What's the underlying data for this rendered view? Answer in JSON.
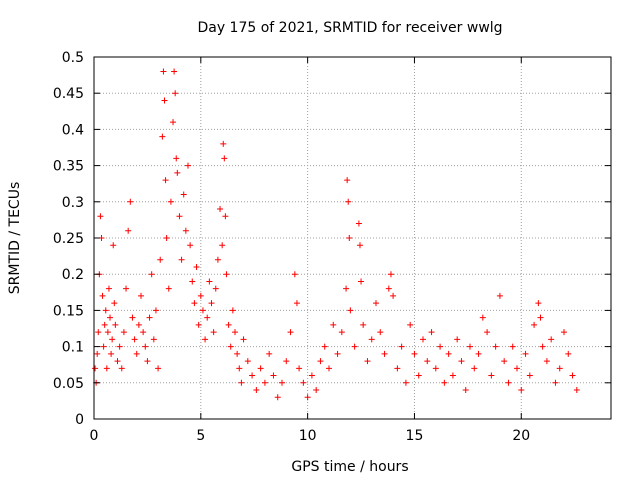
{
  "chart_data": {
    "type": "scatter",
    "title": "Day 175 of 2021, SRMTID for receiver wwlg",
    "xlabel": "GPS time / hours",
    "ylabel": "SRMTID / TECUs",
    "xlim": [
      0,
      24.2
    ],
    "ylim": [
      0,
      0.5
    ],
    "x_ticks": [
      0,
      5,
      10,
      15,
      20
    ],
    "x_tick_labels": [
      "0",
      "5",
      "10",
      "15",
      "20"
    ],
    "y_ticks": [
      0,
      0.05,
      0.1,
      0.15,
      0.2,
      0.25,
      0.3,
      0.35,
      0.4,
      0.45,
      0.5
    ],
    "y_tick_labels": [
      "0",
      "0.05",
      "0.1",
      "0.15",
      "0.2",
      "0.25",
      "0.3",
      "0.35",
      "0.4",
      "0.45",
      "0.5"
    ],
    "grid": true,
    "marker": "+",
    "colors": {
      "series": "#ff0000",
      "grid": "#a0a0a0",
      "axis": "#000000"
    },
    "series": [
      {
        "name": "SRMTID",
        "points": [
          [
            0.05,
            0.07
          ],
          [
            0.1,
            0.05
          ],
          [
            0.15,
            0.09
          ],
          [
            0.2,
            0.12
          ],
          [
            0.25,
            0.2
          ],
          [
            0.3,
            0.28
          ],
          [
            0.35,
            0.25
          ],
          [
            0.4,
            0.17
          ],
          [
            0.45,
            0.1
          ],
          [
            0.5,
            0.13
          ],
          [
            0.55,
            0.15
          ],
          [
            0.6,
            0.07
          ],
          [
            0.65,
            0.12
          ],
          [
            0.7,
            0.18
          ],
          [
            0.75,
            0.14
          ],
          [
            0.8,
            0.09
          ],
          [
            0.85,
            0.11
          ],
          [
            0.9,
            0.24
          ],
          [
            0.95,
            0.16
          ],
          [
            1.0,
            0.13
          ],
          [
            1.1,
            0.08
          ],
          [
            1.2,
            0.1
          ],
          [
            1.3,
            0.07
          ],
          [
            1.4,
            0.12
          ],
          [
            1.5,
            0.18
          ],
          [
            1.6,
            0.26
          ],
          [
            1.7,
            0.3
          ],
          [
            1.8,
            0.14
          ],
          [
            1.9,
            0.11
          ],
          [
            2.0,
            0.09
          ],
          [
            2.1,
            0.13
          ],
          [
            2.2,
            0.17
          ],
          [
            2.3,
            0.12
          ],
          [
            2.4,
            0.1
          ],
          [
            2.5,
            0.08
          ],
          [
            2.6,
            0.14
          ],
          [
            2.7,
            0.2
          ],
          [
            2.8,
            0.11
          ],
          [
            2.9,
            0.15
          ],
          [
            3.0,
            0.07
          ],
          [
            3.1,
            0.22
          ],
          [
            3.2,
            0.39
          ],
          [
            3.25,
            0.48
          ],
          [
            3.3,
            0.44
          ],
          [
            3.35,
            0.33
          ],
          [
            3.4,
            0.25
          ],
          [
            3.5,
            0.18
          ],
          [
            3.6,
            0.3
          ],
          [
            3.7,
            0.41
          ],
          [
            3.75,
            0.48
          ],
          [
            3.8,
            0.45
          ],
          [
            3.85,
            0.36
          ],
          [
            3.9,
            0.34
          ],
          [
            4.0,
            0.28
          ],
          [
            4.1,
            0.22
          ],
          [
            4.2,
            0.31
          ],
          [
            4.3,
            0.26
          ],
          [
            4.4,
            0.35
          ],
          [
            4.5,
            0.24
          ],
          [
            4.6,
            0.19
          ],
          [
            4.7,
            0.16
          ],
          [
            4.8,
            0.21
          ],
          [
            4.9,
            0.13
          ],
          [
            5.0,
            0.17
          ],
          [
            5.1,
            0.15
          ],
          [
            5.2,
            0.11
          ],
          [
            5.3,
            0.14
          ],
          [
            5.4,
            0.19
          ],
          [
            5.5,
            0.16
          ],
          [
            5.6,
            0.12
          ],
          [
            5.7,
            0.18
          ],
          [
            5.8,
            0.22
          ],
          [
            5.9,
            0.29
          ],
          [
            6.0,
            0.24
          ],
          [
            6.05,
            0.38
          ],
          [
            6.1,
            0.36
          ],
          [
            6.15,
            0.28
          ],
          [
            6.2,
            0.2
          ],
          [
            6.3,
            0.13
          ],
          [
            6.4,
            0.1
          ],
          [
            6.5,
            0.15
          ],
          [
            6.6,
            0.12
          ],
          [
            6.7,
            0.09
          ],
          [
            6.8,
            0.07
          ],
          [
            6.9,
            0.05
          ],
          [
            7.0,
            0.11
          ],
          [
            7.2,
            0.08
          ],
          [
            7.4,
            0.06
          ],
          [
            7.6,
            0.04
          ],
          [
            7.8,
            0.07
          ],
          [
            8.0,
            0.05
          ],
          [
            8.2,
            0.09
          ],
          [
            8.4,
            0.06
          ],
          [
            8.6,
            0.03
          ],
          [
            8.8,
            0.05
          ],
          [
            9.0,
            0.08
          ],
          [
            9.2,
            0.12
          ],
          [
            9.4,
            0.2
          ],
          [
            9.5,
            0.16
          ],
          [
            9.6,
            0.07
          ],
          [
            9.8,
            0.05
          ],
          [
            10.0,
            0.03
          ],
          [
            10.2,
            0.06
          ],
          [
            10.4,
            0.04
          ],
          [
            10.6,
            0.08
          ],
          [
            10.8,
            0.1
          ],
          [
            11.0,
            0.07
          ],
          [
            11.2,
            0.13
          ],
          [
            11.4,
            0.09
          ],
          [
            11.6,
            0.12
          ],
          [
            11.8,
            0.18
          ],
          [
            11.85,
            0.33
          ],
          [
            11.9,
            0.3
          ],
          [
            11.95,
            0.25
          ],
          [
            12.0,
            0.15
          ],
          [
            12.2,
            0.1
          ],
          [
            12.4,
            0.27
          ],
          [
            12.45,
            0.24
          ],
          [
            12.5,
            0.19
          ],
          [
            12.6,
            0.13
          ],
          [
            12.8,
            0.08
          ],
          [
            13.0,
            0.11
          ],
          [
            13.2,
            0.16
          ],
          [
            13.4,
            0.12
          ],
          [
            13.6,
            0.09
          ],
          [
            13.8,
            0.18
          ],
          [
            13.9,
            0.2
          ],
          [
            14.0,
            0.17
          ],
          [
            14.2,
            0.07
          ],
          [
            14.4,
            0.1
          ],
          [
            14.6,
            0.05
          ],
          [
            14.8,
            0.13
          ],
          [
            15.0,
            0.09
          ],
          [
            15.2,
            0.06
          ],
          [
            15.4,
            0.11
          ],
          [
            15.6,
            0.08
          ],
          [
            15.8,
            0.12
          ],
          [
            16.0,
            0.07
          ],
          [
            16.2,
            0.1
          ],
          [
            16.4,
            0.05
          ],
          [
            16.6,
            0.09
          ],
          [
            16.8,
            0.06
          ],
          [
            17.0,
            0.11
          ],
          [
            17.2,
            0.08
          ],
          [
            17.4,
            0.04
          ],
          [
            17.6,
            0.1
          ],
          [
            17.8,
            0.07
          ],
          [
            18.0,
            0.09
          ],
          [
            18.2,
            0.14
          ],
          [
            18.4,
            0.12
          ],
          [
            18.6,
            0.06
          ],
          [
            18.8,
            0.1
          ],
          [
            19.0,
            0.17
          ],
          [
            19.2,
            0.08
          ],
          [
            19.4,
            0.05
          ],
          [
            19.6,
            0.1
          ],
          [
            19.8,
            0.07
          ],
          [
            20.0,
            0.04
          ],
          [
            20.2,
            0.09
          ],
          [
            20.4,
            0.06
          ],
          [
            20.6,
            0.13
          ],
          [
            20.8,
            0.16
          ],
          [
            20.9,
            0.14
          ],
          [
            21.0,
            0.1
          ],
          [
            21.2,
            0.08
          ],
          [
            21.4,
            0.11
          ],
          [
            21.6,
            0.05
          ],
          [
            21.8,
            0.07
          ],
          [
            22.0,
            0.12
          ],
          [
            22.2,
            0.09
          ],
          [
            22.4,
            0.06
          ],
          [
            22.6,
            0.04
          ]
        ]
      }
    ]
  }
}
